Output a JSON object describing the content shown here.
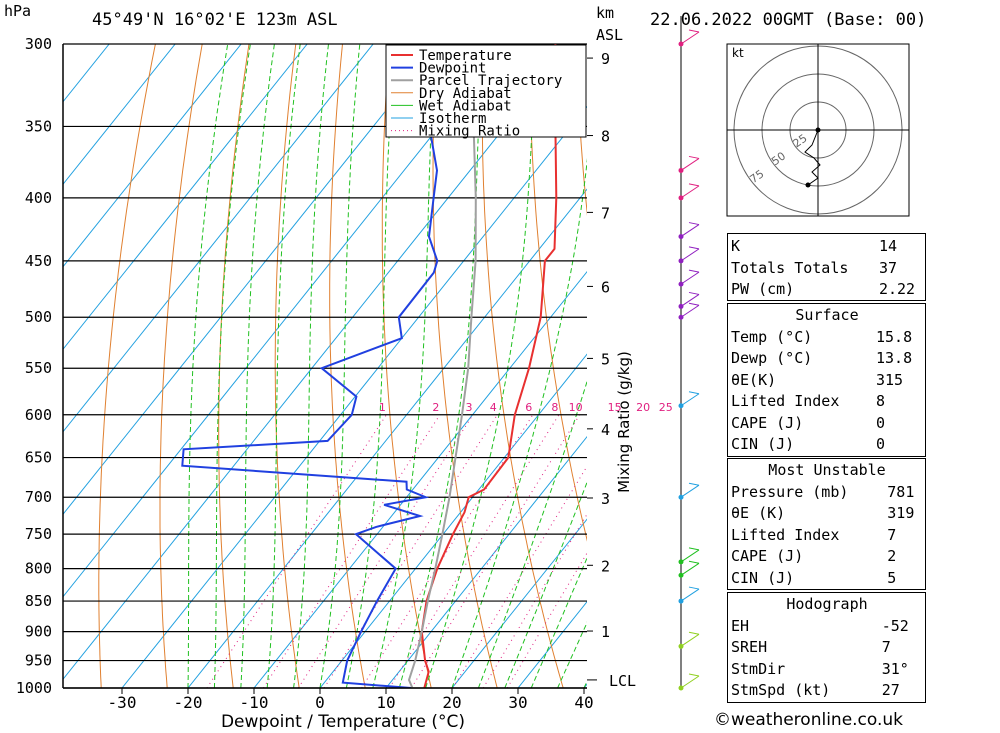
{
  "header": {
    "pressure_unit": "hPa",
    "location": "45°49'N 16°02'E 123m ASL",
    "km_label": "km",
    "asl_label": "ASL",
    "datetime": "22.06.2022 00GMT (Base: 00)"
  },
  "chart_data": {
    "type": "line",
    "xlabel": "Dewpoint / Temperature (°C)",
    "ylabel": "hPa",
    "mixing_ratio_axis_label": "Mixing Ratio (g/kg)",
    "xlim": [
      -40,
      40
    ],
    "x_ticks": [
      -30,
      -20,
      -10,
      0,
      10,
      20,
      30,
      40
    ],
    "pressure_levels": [
      300,
      350,
      400,
      450,
      500,
      550,
      600,
      650,
      700,
      750,
      800,
      850,
      900,
      950,
      1000
    ],
    "km_ticks": [
      {
        "km": 1,
        "p": 899
      },
      {
        "km": 2,
        "p": 795
      },
      {
        "km": 3,
        "p": 701
      },
      {
        "km": 4,
        "p": 616
      },
      {
        "km": 5,
        "p": 540
      },
      {
        "km": 6,
        "p": 472
      },
      {
        "km": 7,
        "p": 411
      },
      {
        "km": 8,
        "p": 356
      },
      {
        "km": 9,
        "p": 308
      }
    ],
    "lcl_label": "LCL",
    "lcl_pressure": 985,
    "mixing_ratio_labels": [
      "1",
      "2",
      "3",
      "4",
      "6",
      "8",
      "10",
      "15",
      "20",
      "25"
    ],
    "legend": [
      "Temperature",
      "Dewpoint",
      "Parcel Trajectory",
      "Dry Adiabat",
      "Wet Adiabat",
      "Isotherm",
      "Mixing Ratio"
    ],
    "series": [
      {
        "name": "Temperature",
        "color": "#e83030",
        "points": [
          [
            1000,
            15.8
          ],
          [
            970,
            14.5
          ],
          [
            950,
            12.6
          ],
          [
            900,
            8.6
          ],
          [
            850,
            5.6
          ],
          [
            800,
            3.3
          ],
          [
            750,
            1.5
          ],
          [
            720,
            0.6
          ],
          [
            700,
            -0.6
          ],
          [
            690,
            0.8
          ],
          [
            650,
            0.6
          ],
          [
            600,
            -3.6
          ],
          [
            550,
            -7.1
          ],
          [
            500,
            -11.5
          ],
          [
            450,
            -17.7
          ],
          [
            440,
            -17.7
          ],
          [
            400,
            -23.6
          ],
          [
            350,
            -32.4
          ],
          [
            300,
            -42.4
          ]
        ]
      },
      {
        "name": "Dewpoint",
        "color": "#2040e0",
        "points": [
          [
            1000,
            13.8
          ],
          [
            990,
            2.8
          ],
          [
            950,
            0.8
          ],
          [
            900,
            -0.6
          ],
          [
            850,
            -1.9
          ],
          [
            800,
            -3.0
          ],
          [
            780,
            -7.0
          ],
          [
            750,
            -13.2
          ],
          [
            740,
            -11.0
          ],
          [
            725,
            -5.7
          ],
          [
            710,
            -12.5
          ],
          [
            700,
            -7.1
          ],
          [
            690,
            -10.9
          ],
          [
            680,
            -11.9
          ],
          [
            660,
            -47.8
          ],
          [
            640,
            -49.6
          ],
          [
            630,
            -28.8
          ],
          [
            600,
            -28.3
          ],
          [
            580,
            -29.8
          ],
          [
            550,
            -38.5
          ],
          [
            520,
            -30.0
          ],
          [
            500,
            -33.0
          ],
          [
            460,
            -33.1
          ],
          [
            450,
            -34.0
          ],
          [
            430,
            -38.2
          ],
          [
            400,
            -42.2
          ],
          [
            380,
            -45.0
          ],
          [
            350,
            -51.5
          ],
          [
            330,
            -57.7
          ],
          [
            310,
            -64.8
          ],
          [
            305,
            -59.0
          ]
        ]
      },
      {
        "name": "Parcel Trajectory",
        "color": "#a0a0a0",
        "points": [
          [
            1000,
            14.0
          ],
          [
            985,
            12.5
          ],
          [
            950,
            11.1
          ],
          [
            900,
            8.6
          ],
          [
            850,
            5.8
          ],
          [
            800,
            3.0
          ],
          [
            750,
            -0.1
          ],
          [
            700,
            -3.5
          ],
          [
            650,
            -7.4
          ],
          [
            600,
            -11.6
          ],
          [
            550,
            -16.3
          ],
          [
            500,
            -22.0
          ],
          [
            450,
            -28.2
          ],
          [
            400,
            -35.8
          ],
          [
            350,
            -44.8
          ],
          [
            310,
            -52.8
          ]
        ]
      }
    ],
    "hodograph": {
      "unit_label": "kt",
      "ring_labels": [
        "25",
        "50",
        "75"
      ]
    }
  },
  "indices": {
    "rows": [
      [
        "K",
        "14"
      ],
      [
        "Totals Totals",
        "37"
      ],
      [
        "PW (cm)",
        "2.22"
      ]
    ],
    "surface": {
      "title": "Surface",
      "rows": [
        [
          "Temp (°C)",
          "15.8"
        ],
        [
          "Dewp (°C)",
          "13.8"
        ],
        [
          "θE(K)",
          "315"
        ],
        [
          "Lifted Index",
          "8"
        ],
        [
          "CAPE (J)",
          "0"
        ],
        [
          "CIN (J)",
          "0"
        ]
      ]
    },
    "most_unstable": {
      "title": "Most Unstable",
      "rows": [
        [
          "Pressure (mb)",
          "781"
        ],
        [
          "θE (K)",
          "319"
        ],
        [
          "Lifted Index",
          "7"
        ],
        [
          "CAPE (J)",
          "2"
        ],
        [
          "CIN (J)",
          "5"
        ]
      ]
    },
    "hodograph": {
      "title": "Hodograph",
      "rows": [
        [
          "EH",
          "-52"
        ],
        [
          "SREH",
          "7"
        ],
        [
          "StmDir",
          "31°"
        ],
        [
          "StmSpd (kt)",
          "27"
        ]
      ]
    }
  },
  "copyright": "©weatheronline.co.uk",
  "colors": {
    "temperature": "#e83030",
    "dewpoint": "#2040e0",
    "parcel": "#a0a0a0",
    "dry_adiabat": "#e08030",
    "wet_adiabat": "#20c020",
    "isotherm": "#20a0e0",
    "mixing_ratio": "#e02080",
    "wind_barbs": "#9020c0"
  }
}
